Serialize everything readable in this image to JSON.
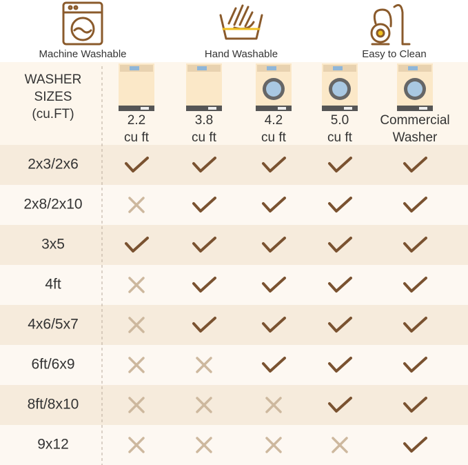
{
  "features": [
    "Machine Washable",
    "Hand Washable",
    "Easy to Clean"
  ],
  "table": {
    "header": [
      "WASHER",
      "SIZES",
      "(cu.FT)"
    ],
    "columns": [
      {
        "lines": [
          "2.2",
          "cu ft"
        ],
        "kind": "top"
      },
      {
        "lines": [
          "3.8",
          "cu ft"
        ],
        "kind": "top"
      },
      {
        "lines": [
          "4.2",
          "cu ft"
        ],
        "kind": "front"
      },
      {
        "lines": [
          "5.0",
          "cu ft"
        ],
        "kind": "front"
      },
      {
        "lines": [
          "Commercial",
          "Washer"
        ],
        "kind": "front"
      }
    ],
    "rows": [
      {
        "size": "2x3/2x6",
        "fits": [
          true,
          true,
          true,
          true,
          true
        ]
      },
      {
        "size": "2x8/2x10",
        "fits": [
          false,
          true,
          true,
          true,
          true
        ]
      },
      {
        "size": "3x5",
        "fits": [
          true,
          true,
          true,
          true,
          true
        ]
      },
      {
        "size": "4ft",
        "fits": [
          false,
          true,
          true,
          true,
          true
        ]
      },
      {
        "size": "4x6/5x7",
        "fits": [
          false,
          true,
          true,
          true,
          true
        ]
      },
      {
        "size": "6ft/6x9",
        "fits": [
          false,
          false,
          true,
          true,
          true
        ]
      },
      {
        "size": "8ft/8x10",
        "fits": [
          false,
          false,
          false,
          true,
          true
        ]
      },
      {
        "size": "9x12",
        "fits": [
          false,
          false,
          false,
          false,
          true
        ]
      }
    ]
  }
}
